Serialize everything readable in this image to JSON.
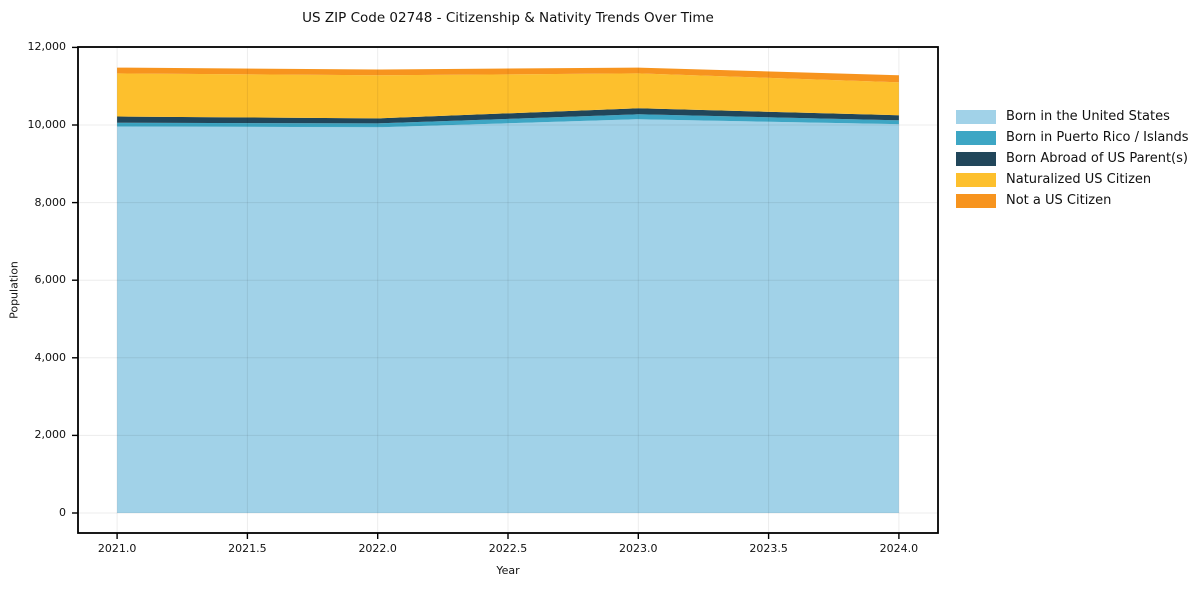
{
  "title": "US ZIP Code 02748 - Citizenship & Nativity Trends Over Time",
  "colors": {
    "background": "#ffffff",
    "spine": "#000000",
    "grid": "rgba(0,0,0,0.075)",
    "text": "#111111"
  },
  "legend_position": "right",
  "chart_data": {
    "type": "area",
    "stacked": true,
    "title": "US ZIP Code 02748 - Citizenship & Nativity Trends Over Time",
    "xlabel": "Year",
    "ylabel": "Population",
    "x": [
      2021,
      2022,
      2023,
      2024
    ],
    "series": [
      {
        "name": "Born in the United States",
        "color": "#A1D2E8",
        "values": [
          9960,
          9940,
          10150,
          10020
        ]
      },
      {
        "name": "Born in Puerto Rico / Islands",
        "color": "#3DA6C4",
        "values": [
          100,
          100,
          125,
          100
        ]
      },
      {
        "name": "Born Abroad of US Parent(s)",
        "color": "#21465A",
        "values": [
          160,
          130,
          155,
          130
        ]
      },
      {
        "name": "Naturalized US Citizen",
        "color": "#FDC02D",
        "values": [
          1110,
          1110,
          900,
          850
        ]
      },
      {
        "name": "Not a US Citizen",
        "color": "#F7941E",
        "values": [
          150,
          150,
          150,
          180
        ]
      }
    ],
    "totals": [
      11480,
      11430,
      11480,
      11280
    ],
    "xlim": [
      2020.85,
      2024.15
    ],
    "ylim": [
      -515,
      12010
    ],
    "xticks": {
      "values": [
        2021.0,
        2021.5,
        2022.0,
        2022.5,
        2023.0,
        2023.5,
        2024.0
      ],
      "labels": [
        "2021.0",
        "2021.5",
        "2022.0",
        "2022.5",
        "2023.0",
        "2023.5",
        "2024.0"
      ]
    },
    "yticks": {
      "values": [
        0,
        2000,
        4000,
        6000,
        8000,
        10000,
        12000
      ],
      "labels": [
        "0",
        "2,000",
        "4,000",
        "6,000",
        "8,000",
        "10,000",
        "12,000"
      ]
    },
    "grid": true,
    "legend_position": "right"
  }
}
